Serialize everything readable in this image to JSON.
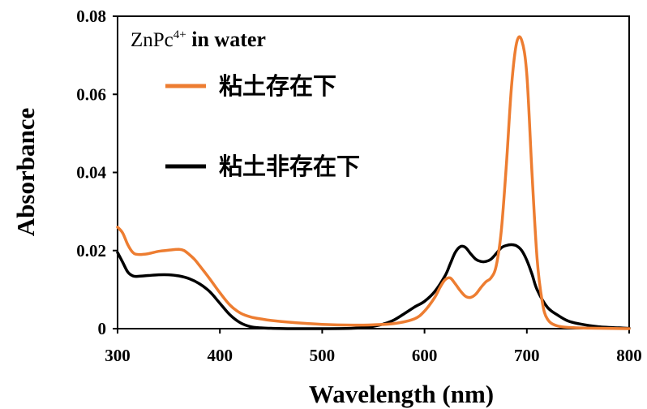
{
  "chart_data": {
    "type": "line",
    "xlabel": "Wavelength (nm)",
    "ylabel": "Absorbance",
    "xlim": [
      300,
      800
    ],
    "ylim": [
      0,
      0.08
    ],
    "x_ticks": [
      "300",
      "400",
      "500",
      "600",
      "700",
      "800"
    ],
    "y_ticks": [
      "0",
      "0.02",
      "0.04",
      "0.06",
      "0.08"
    ],
    "annotation": {
      "compound": "ZnPc",
      "charge": "4+",
      "medium": " in water"
    },
    "legend": {
      "placement": "top-left",
      "items": [
        "粘土存在下",
        "粘土非存在下"
      ]
    },
    "series": [
      {
        "name": "粘土存在下",
        "color": "#ED7D31",
        "x": [
          300,
          305,
          310,
          315,
          320,
          330,
          340,
          350,
          360,
          365,
          370,
          375,
          380,
          390,
          400,
          410,
          420,
          430,
          440,
          450,
          470,
          500,
          530,
          550,
          570,
          590,
          600,
          610,
          615,
          620,
          625,
          630,
          635,
          640,
          645,
          650,
          655,
          660,
          665,
          670,
          675,
          680,
          685,
          690,
          695,
          700,
          705,
          710,
          715,
          720,
          730,
          750,
          770,
          800
        ],
        "y": [
          0.026,
          0.0245,
          0.0215,
          0.0195,
          0.019,
          0.0192,
          0.0198,
          0.0201,
          0.0203,
          0.02,
          0.019,
          0.0178,
          0.0162,
          0.0128,
          0.0092,
          0.006,
          0.004,
          0.003,
          0.0025,
          0.0021,
          0.0016,
          0.0011,
          0.0009,
          0.001,
          0.0013,
          0.0025,
          0.0045,
          0.008,
          0.0105,
          0.0125,
          0.013,
          0.0115,
          0.0097,
          0.0083,
          0.008,
          0.0088,
          0.0105,
          0.012,
          0.013,
          0.016,
          0.025,
          0.042,
          0.062,
          0.0732,
          0.0738,
          0.065,
          0.04,
          0.018,
          0.007,
          0.0025,
          0.0007,
          0.0002,
          0.0001,
          0.0
        ]
      },
      {
        "name": "粘土非存在下",
        "color": "#000000",
        "x": [
          300,
          305,
          310,
          315,
          320,
          330,
          340,
          350,
          360,
          370,
          380,
          390,
          400,
          410,
          420,
          430,
          440,
          450,
          470,
          500,
          530,
          550,
          560,
          570,
          580,
          590,
          600,
          610,
          620,
          625,
          630,
          635,
          640,
          645,
          650,
          655,
          660,
          665,
          670,
          675,
          680,
          685,
          690,
          695,
          700,
          705,
          710,
          720,
          730,
          740,
          750,
          770,
          800
        ],
        "y": [
          0.0195,
          0.017,
          0.0145,
          0.0135,
          0.0134,
          0.0136,
          0.0138,
          0.0138,
          0.0135,
          0.0128,
          0.0115,
          0.0095,
          0.0065,
          0.0035,
          0.0015,
          0.0005,
          0.0002,
          0.0001,
          0.0,
          0.0,
          0.0001,
          0.0006,
          0.0012,
          0.0022,
          0.0038,
          0.0055,
          0.007,
          0.0095,
          0.0135,
          0.0165,
          0.0195,
          0.021,
          0.0208,
          0.0192,
          0.0178,
          0.0172,
          0.0172,
          0.0178,
          0.0192,
          0.0207,
          0.0213,
          0.0215,
          0.0212,
          0.02,
          0.0175,
          0.014,
          0.01,
          0.0055,
          0.0035,
          0.002,
          0.0013,
          0.0005,
          0.0001
        ]
      }
    ]
  }
}
